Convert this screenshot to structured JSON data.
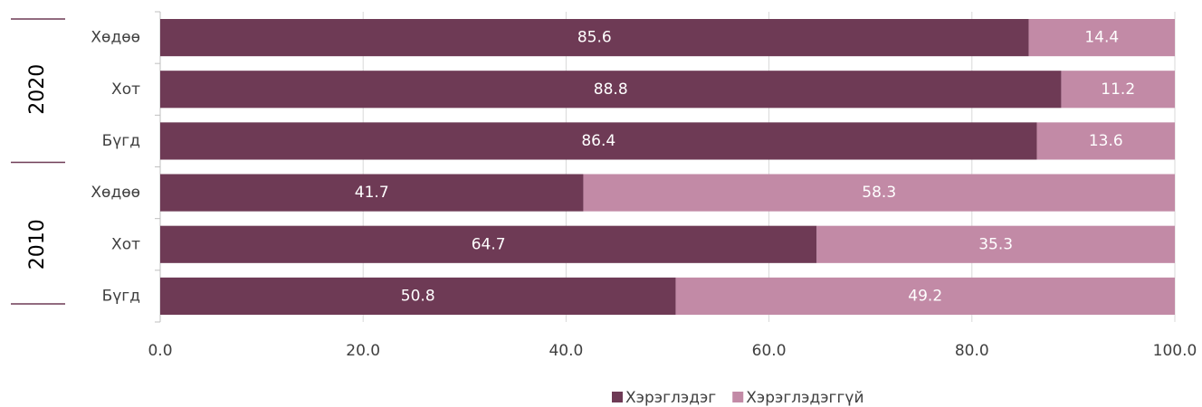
{
  "chart_data": {
    "type": "stacked_bar_horizontal",
    "groups": [
      {
        "name": "2020",
        "categories": [
          "Хөдөө",
          "Хот",
          "Бүгд"
        ]
      },
      {
        "name": "2010",
        "categories": [
          "Хөдөө",
          "Хот",
          "Бүгд"
        ]
      }
    ],
    "series": [
      {
        "name": "Хэрэглэдэг",
        "color": "#6e3a55",
        "values": [
          85.6,
          88.8,
          86.4,
          41.7,
          64.7,
          50.8
        ]
      },
      {
        "name": "Хэрэглэдэггүй",
        "color": "#c28aa6",
        "values": [
          14.4,
          11.2,
          13.6,
          58.3,
          35.3,
          49.2
        ]
      }
    ],
    "xlim": [
      0,
      100
    ],
    "xticks": [
      {
        "value": 0,
        "label": "0.0"
      },
      {
        "value": 20,
        "label": "20.0"
      },
      {
        "value": 40,
        "label": "40.0"
      },
      {
        "value": 60,
        "label": "60.0"
      },
      {
        "value": 80,
        "label": "80.0"
      },
      {
        "value": 100,
        "label": "100.0"
      }
    ],
    "grid": true,
    "legend": "bottom"
  }
}
